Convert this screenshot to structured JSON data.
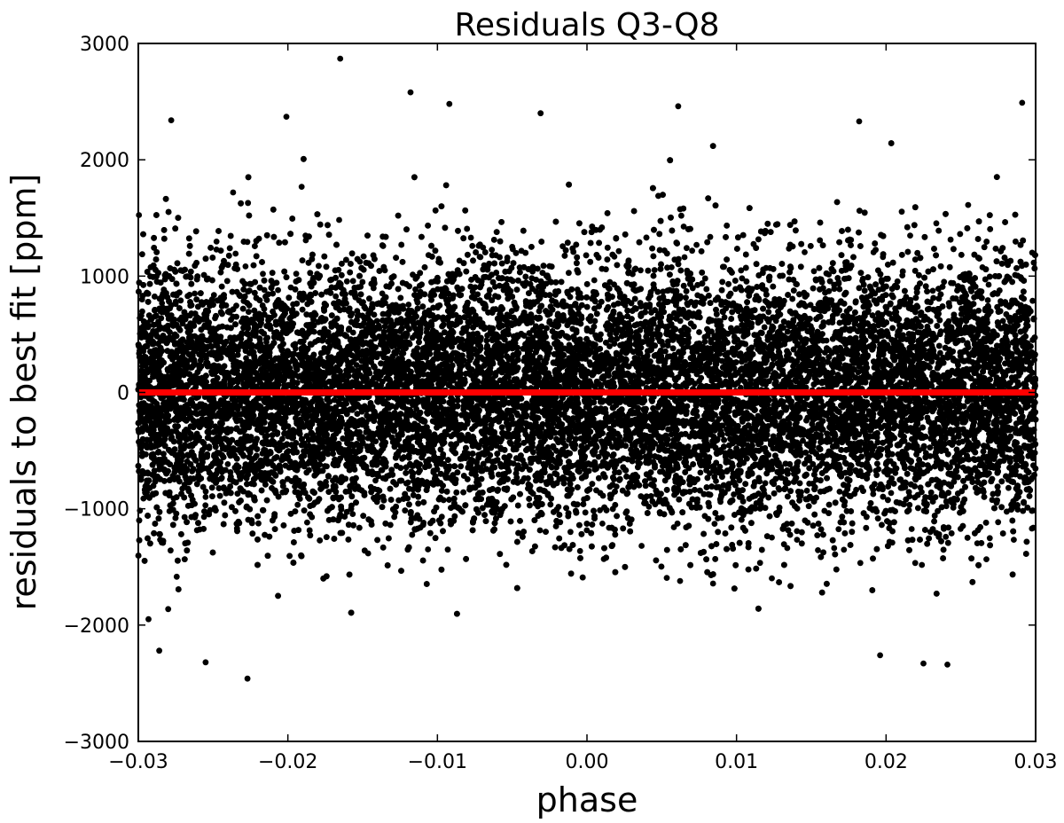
{
  "chart_data": {
    "type": "scatter",
    "title": "Residuals Q3-Q8",
    "xlabel": "phase",
    "ylabel": "residuals to best fit [ppm]",
    "xlim": [
      -0.03,
      0.03
    ],
    "ylim": [
      -3000,
      3000
    ],
    "xticks": [
      -0.03,
      -0.02,
      -0.01,
      0.0,
      0.01,
      0.02,
      0.03
    ],
    "xtick_labels": [
      "−0.03",
      "−0.02",
      "−0.01",
      "0.00",
      "0.01",
      "0.02",
      "0.03"
    ],
    "yticks": [
      -3000,
      -2000,
      -1000,
      0,
      1000,
      2000,
      3000
    ],
    "ytick_labels": [
      "−3000",
      "−2000",
      "−1000",
      "0",
      "1000",
      "2000",
      "3000"
    ],
    "grid": false,
    "legend": "none",
    "series": [
      {
        "kind": "scatter",
        "color": "#000000",
        "approx_point_count": 24000,
        "distribution": "gaussian",
        "mean": 0,
        "sigma_ppm": 560,
        "outliers": [
          {
            "x": -0.0165,
            "y": 2870
          },
          {
            "x": -0.0118,
            "y": 2580
          },
          {
            "x": 0.0291,
            "y": 2490
          },
          {
            "x": -0.0092,
            "y": 2480
          },
          {
            "x": 0.0061,
            "y": 2460
          },
          {
            "x": -0.0031,
            "y": 2400
          },
          {
            "x": -0.0201,
            "y": 2370
          },
          {
            "x": -0.0278,
            "y": 2340
          },
          {
            "x": 0.0182,
            "y": 2330
          },
          {
            "x": -0.0227,
            "y": -2460
          },
          {
            "x": -0.0255,
            "y": -2320
          },
          {
            "x": 0.0241,
            "y": -2340
          },
          {
            "x": 0.0225,
            "y": -2330
          },
          {
            "x": -0.0286,
            "y": -2220
          },
          {
            "x": 0.0196,
            "y": -2260
          }
        ]
      },
      {
        "kind": "line",
        "color": "#ff0000",
        "x": [
          -0.03,
          0.03
        ],
        "y": [
          0,
          0
        ]
      }
    ]
  }
}
